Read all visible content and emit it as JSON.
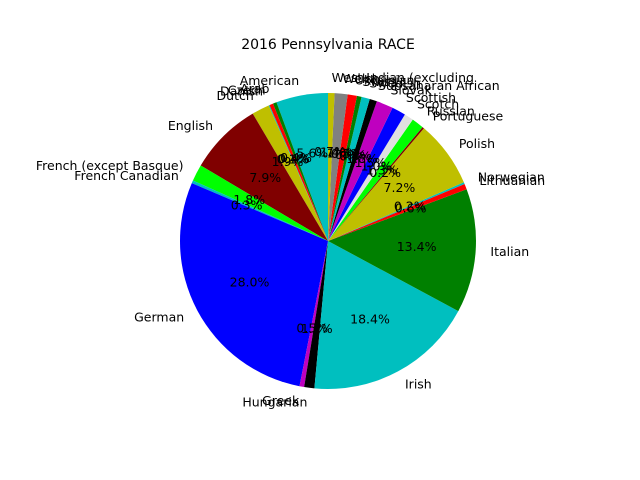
{
  "chart_data": {
    "type": "pie",
    "title": "2016 Pennsylvania RACE",
    "start_angle_deg": 90,
    "direction": "counterclockwise",
    "slices": [
      {
        "label": "American",
        "value": 5.6,
        "pct_label": "5.6%",
        "color": "#00bfbf"
      },
      {
        "label": "Arab",
        "value": 0.4,
        "pct_label": "0.4%",
        "color": "#008000"
      },
      {
        "label": "Czech",
        "value": 0.4,
        "pct_label": "0.4%",
        "color": "#ff0000"
      },
      {
        "label": "Danish",
        "value": 0.1,
        "pct_label": "0.1%",
        "color": "#00bfbf"
      },
      {
        "label": "Dutch",
        "value": 1.9,
        "pct_label": "1.9%",
        "color": "#bfbf00"
      },
      {
        "label": "English",
        "value": 7.9,
        "pct_label": "7.9%",
        "color": "#800000"
      },
      {
        "label": "French (except Basque)",
        "value": 1.8,
        "pct_label": "1.8%",
        "color": "#00ff00"
      },
      {
        "label": "French Canadian",
        "value": 0.3,
        "pct_label": "0.3%",
        "color": "#00bfbf"
      },
      {
        "label": "German",
        "value": 28.0,
        "pct_label": "28.0%",
        "color": "#0000ff"
      },
      {
        "label": "Greek",
        "value": 0.5,
        "pct_label": "0.5%",
        "color": "#bf00bf"
      },
      {
        "label": "Hungarian",
        "value": 1.1,
        "pct_label": "1.1%",
        "color": "#000000"
      },
      {
        "label": "Irish",
        "value": 18.4,
        "pct_label": "18.4%",
        "color": "#00bfbf"
      },
      {
        "label": "Italian",
        "value": 13.4,
        "pct_label": "13.4%",
        "color": "#008000"
      },
      {
        "label": "Lithuanian",
        "value": 0.6,
        "pct_label": "0.6%",
        "color": "#ff0000"
      },
      {
        "label": "Norwegian",
        "value": 0.2,
        "pct_label": "0.2%",
        "color": "#00bfbf"
      },
      {
        "label": "Polish",
        "value": 7.2,
        "pct_label": "7.2%",
        "color": "#bfbf00"
      },
      {
        "label": "Portuguese",
        "value": 0.2,
        "pct_label": "0.2%",
        "color": "#800000"
      },
      {
        "label": "Russian",
        "value": 1.3,
        "pct_label": "1.3%",
        "color": "#00ff00"
      },
      {
        "label": "Scotch",
        "value": 1.0,
        "pct_label": "1.0%",
        "color": "#e0e0e0"
      },
      {
        "label": "Scottish",
        "value": 1.5,
        "pct_label": "1.5%",
        "color": "#0000ff"
      },
      {
        "label": "Slovak",
        "value": 1.8,
        "pct_label": "1.8%",
        "color": "#bf00bf"
      },
      {
        "label": "Subsaharan African",
        "value": 0.8,
        "pct_label": "0.8%",
        "color": "#000000"
      },
      {
        "label": "Swedish",
        "value": 0.9,
        "pct_label": "0.9%",
        "color": "#00bfbf"
      },
      {
        "label": "Swiss",
        "value": 0.5,
        "pct_label": "0.5%",
        "color": "#008000"
      },
      {
        "label": "Ukrainian",
        "value": 1.0,
        "pct_label": "1.0%",
        "color": "#ff0000"
      },
      {
        "label": "Welsh",
        "value": 1.4,
        "pct_label": "1.4%",
        "color": "#808080"
      },
      {
        "label": "West Indian (excluding",
        "value": 0.7,
        "pct_label": "0.7%",
        "color": "#bfbf00"
      }
    ]
  }
}
